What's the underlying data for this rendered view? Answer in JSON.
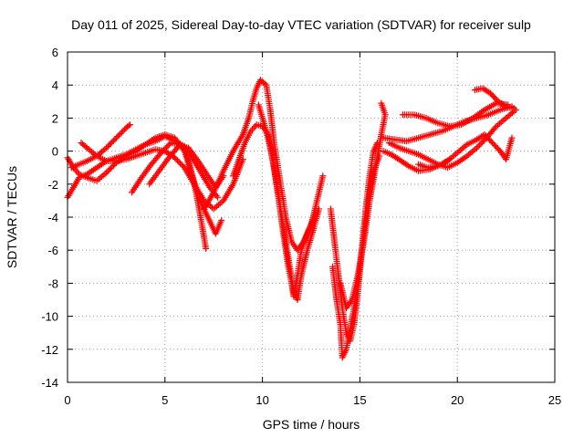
{
  "chart_data": {
    "type": "scatter",
    "title": "Day 011 of 2025, Sidereal Day-to-day VTEC variation (SDTVAR) for receiver sulp",
    "xlabel": "GPS time / hours",
    "ylabel": "SDTVAR / TECUs",
    "xlim": [
      0,
      25
    ],
    "ylim": [
      -14,
      6
    ],
    "xticks": [
      0,
      5,
      10,
      15,
      20,
      25
    ],
    "yticks": [
      -14,
      -12,
      -10,
      -8,
      -6,
      -4,
      -2,
      0,
      2,
      4,
      6
    ],
    "grid": true,
    "marker": "+",
    "color": "#ff0000",
    "series": [
      {
        "points": [
          [
            0.0,
            -2.8
          ],
          [
            0.3,
            -2.2
          ],
          [
            0.6,
            -1.6
          ],
          [
            1.0,
            -1.4
          ],
          [
            1.5,
            -1.0
          ],
          [
            2.0,
            -0.6
          ],
          [
            2.5,
            -0.4
          ],
          [
            3.0,
            -0.2
          ],
          [
            3.5,
            0.1
          ],
          [
            4.0,
            0.4
          ],
          [
            4.5,
            0.6
          ],
          [
            5.0,
            0.9
          ],
          [
            5.5,
            0.6
          ],
          [
            6.0,
            0.3
          ],
          [
            6.3,
            -1.0
          ],
          [
            6.6,
            -2.5
          ],
          [
            6.9,
            -4.5
          ],
          [
            7.1,
            -5.9
          ]
        ]
      },
      {
        "points": [
          [
            0.0,
            -0.4
          ],
          [
            0.3,
            -1.0
          ],
          [
            0.6,
            -1.4
          ],
          [
            1.0,
            -1.6
          ],
          [
            1.5,
            -1.8
          ],
          [
            2.0,
            -1.3
          ],
          [
            2.5,
            -0.7
          ],
          [
            3.0,
            -0.3
          ],
          [
            3.5,
            0.0
          ],
          [
            4.0,
            0.4
          ],
          [
            4.5,
            0.8
          ],
          [
            5.0,
            1.0
          ],
          [
            5.5,
            0.8
          ],
          [
            6.0,
            0.0
          ],
          [
            6.4,
            -1.5
          ],
          [
            6.8,
            -3.0
          ],
          [
            7.2,
            -4.0
          ],
          [
            7.6,
            -5.0
          ],
          [
            7.9,
            -4.2
          ]
        ]
      },
      {
        "points": [
          [
            0.7,
            0.5
          ],
          [
            1.0,
            0.2
          ],
          [
            1.5,
            -0.3
          ],
          [
            2.0,
            -0.6
          ],
          [
            2.5,
            -0.6
          ],
          [
            3.0,
            -0.5
          ],
          [
            3.5,
            -0.3
          ],
          [
            4.0,
            -0.1
          ],
          [
            4.5,
            0.1
          ],
          [
            5.0,
            0.0
          ],
          [
            5.5,
            -0.4
          ],
          [
            6.0,
            -1.0
          ],
          [
            6.5,
            -2.0
          ],
          [
            7.0,
            -3.0
          ],
          [
            7.5,
            -3.5
          ],
          [
            8.0,
            -3.0
          ],
          [
            8.5,
            -2.0
          ],
          [
            9.0,
            -0.5
          ]
        ]
      },
      {
        "points": [
          [
            0.2,
            -1.0
          ],
          [
            0.6,
            -0.8
          ],
          [
            1.0,
            -0.6
          ],
          [
            1.5,
            -0.3
          ],
          [
            2.0,
            0.2
          ],
          [
            2.5,
            0.8
          ],
          [
            3.0,
            1.4
          ],
          [
            3.2,
            1.6
          ]
        ]
      },
      {
        "points": [
          [
            3.3,
            -2.5
          ],
          [
            3.8,
            -1.6
          ],
          [
            4.3,
            -0.8
          ],
          [
            4.8,
            -0.1
          ],
          [
            5.3,
            0.5
          ],
          [
            5.8,
            0.4
          ],
          [
            6.3,
            -0.2
          ],
          [
            6.8,
            -1.2
          ],
          [
            7.3,
            -2.2
          ],
          [
            7.7,
            -2.8
          ]
        ]
      },
      {
        "points": [
          [
            4.2,
            -2.0
          ],
          [
            4.7,
            -1.2
          ],
          [
            5.2,
            -0.4
          ],
          [
            5.7,
            0.3
          ],
          [
            6.2,
            0.2
          ],
          [
            6.7,
            -0.6
          ],
          [
            7.2,
            -1.5
          ],
          [
            7.6,
            -2.2
          ],
          [
            8.0,
            -1.5
          ]
        ]
      },
      {
        "points": [
          [
            7.0,
            -3.5
          ],
          [
            7.5,
            -2.5
          ],
          [
            8.0,
            -1.2
          ],
          [
            8.5,
            0.0
          ],
          [
            9.0,
            1.0
          ],
          [
            9.3,
            2.0
          ],
          [
            9.5,
            3.0
          ],
          [
            9.7,
            3.8
          ],
          [
            9.9,
            4.3
          ],
          [
            10.2,
            4.0
          ],
          [
            10.4,
            2.5
          ],
          [
            10.6,
            0.5
          ],
          [
            10.8,
            -1.0
          ],
          [
            11.0,
            -2.5
          ],
          [
            11.2,
            -4.0
          ],
          [
            11.5,
            -5.5
          ],
          [
            11.8,
            -6.0
          ],
          [
            12.1,
            -5.5
          ],
          [
            12.5,
            -4.5
          ],
          [
            12.8,
            -3.0
          ],
          [
            13.1,
            -1.5
          ]
        ]
      },
      {
        "points": [
          [
            8.5,
            -1.5
          ],
          [
            8.8,
            -0.5
          ],
          [
            9.1,
            0.5
          ],
          [
            9.4,
            1.2
          ],
          [
            9.7,
            1.6
          ],
          [
            10.0,
            1.5
          ],
          [
            10.3,
            1.0
          ],
          [
            10.5,
            -0.3
          ],
          [
            10.7,
            -1.8
          ],
          [
            10.9,
            -3.5
          ],
          [
            11.1,
            -5.2
          ],
          [
            11.3,
            -6.8
          ],
          [
            11.5,
            -8.0
          ],
          [
            11.6,
            -8.8
          ],
          [
            11.8,
            -7.5
          ],
          [
            12.0,
            -6.0
          ],
          [
            12.3,
            -5.0
          ],
          [
            12.7,
            -3.8
          ]
        ]
      },
      {
        "points": [
          [
            9.8,
            2.8
          ],
          [
            10.0,
            2.0
          ],
          [
            10.2,
            1.2
          ],
          [
            10.4,
            0.2
          ],
          [
            10.6,
            -1.0
          ],
          [
            10.8,
            -2.5
          ],
          [
            11.0,
            -4.0
          ],
          [
            11.2,
            -5.5
          ],
          [
            11.4,
            -7.0
          ],
          [
            11.6,
            -8.5
          ],
          [
            11.8,
            -9.0
          ],
          [
            12.0,
            -7.5
          ],
          [
            12.3,
            -6.0
          ],
          [
            12.6,
            -4.8
          ],
          [
            12.9,
            -3.5
          ]
        ]
      },
      {
        "points": [
          [
            13.5,
            -3.5
          ],
          [
            13.7,
            -5.5
          ],
          [
            13.9,
            -7.5
          ],
          [
            14.1,
            -9.5
          ],
          [
            14.3,
            -11.0
          ],
          [
            14.5,
            -11.5
          ],
          [
            14.7,
            -10.5
          ],
          [
            14.9,
            -8.5
          ],
          [
            15.1,
            -6.0
          ],
          [
            15.3,
            -3.5
          ],
          [
            15.5,
            -1.5
          ],
          [
            15.7,
            0.0
          ],
          [
            15.9,
            0.5
          ]
        ]
      },
      {
        "points": [
          [
            13.6,
            -7.0
          ],
          [
            13.8,
            -9.0
          ],
          [
            14.0,
            -10.5
          ],
          [
            14.1,
            -12.5
          ],
          [
            14.3,
            -12.0
          ],
          [
            14.5,
            -10.8
          ],
          [
            14.7,
            -9.5
          ],
          [
            14.9,
            -8.0
          ],
          [
            15.1,
            -6.0
          ],
          [
            15.3,
            -4.0
          ],
          [
            15.5,
            -2.5
          ],
          [
            15.7,
            -1.2
          ],
          [
            16.0,
            -0.3
          ]
        ]
      },
      {
        "points": [
          [
            14.0,
            -8.0
          ],
          [
            14.3,
            -9.5
          ],
          [
            14.6,
            -9.0
          ],
          [
            14.9,
            -7.5
          ],
          [
            15.2,
            -5.5
          ],
          [
            15.5,
            -3.0
          ],
          [
            15.8,
            -1.0
          ],
          [
            16.1,
            1.0
          ],
          [
            16.3,
            2.2
          ],
          [
            16.1,
            2.9
          ]
        ]
      },
      {
        "points": [
          [
            16.2,
            0.8
          ],
          [
            16.8,
            0.7
          ],
          [
            17.4,
            0.6
          ],
          [
            18.0,
            0.8
          ],
          [
            18.6,
            1.0
          ],
          [
            19.2,
            1.2
          ],
          [
            19.8,
            1.5
          ],
          [
            20.4,
            1.8
          ],
          [
            21.0,
            2.0
          ],
          [
            21.6,
            2.2
          ],
          [
            22.2,
            2.5
          ],
          [
            22.8,
            2.7
          ]
        ]
      },
      {
        "points": [
          [
            16.5,
            0.5
          ],
          [
            17.0,
            0.2
          ],
          [
            17.5,
            0.0
          ],
          [
            18.0,
            -0.2
          ],
          [
            18.5,
            -0.5
          ],
          [
            19.0,
            -0.8
          ],
          [
            19.5,
            -1.0
          ],
          [
            20.0,
            -0.7
          ],
          [
            20.5,
            -0.3
          ],
          [
            21.0,
            0.2
          ],
          [
            21.5,
            0.8
          ],
          [
            22.0,
            1.5
          ],
          [
            22.5,
            2.0
          ],
          [
            22.9,
            2.4
          ]
        ]
      },
      {
        "points": [
          [
            17.2,
            2.2
          ],
          [
            17.8,
            2.2
          ],
          [
            18.4,
            2.0
          ],
          [
            19.0,
            1.7
          ],
          [
            19.6,
            1.5
          ],
          [
            20.2,
            1.6
          ],
          [
            20.8,
            2.0
          ],
          [
            21.4,
            2.5
          ],
          [
            22.0,
            2.9
          ],
          [
            22.6,
            2.8
          ]
        ]
      },
      {
        "points": [
          [
            18.0,
            -0.8
          ],
          [
            18.5,
            -1.0
          ],
          [
            19.0,
            -0.9
          ],
          [
            19.5,
            -0.6
          ],
          [
            20.0,
            -0.1
          ],
          [
            20.5,
            0.4
          ],
          [
            21.0,
            0.7
          ],
          [
            21.4,
            1.0
          ],
          [
            21.8,
            0.5
          ],
          [
            22.2,
            0.0
          ],
          [
            22.5,
            -0.5
          ],
          [
            22.8,
            0.8
          ]
        ]
      },
      {
        "points": [
          [
            20.9,
            3.7
          ],
          [
            21.3,
            3.8
          ],
          [
            21.7,
            3.5
          ],
          [
            22.1,
            3.0
          ],
          [
            22.5,
            2.7
          ],
          [
            22.9,
            2.6
          ],
          [
            23.0,
            2.5
          ]
        ]
      },
      {
        "points": [
          [
            16.2,
            0.0
          ],
          [
            16.6,
            -0.2
          ],
          [
            17.0,
            -0.5
          ],
          [
            17.5,
            -0.9
          ],
          [
            18.0,
            -1.2
          ],
          [
            18.6,
            -1.1
          ],
          [
            19.2,
            -0.8
          ],
          [
            19.6,
            -0.5
          ]
        ]
      }
    ]
  }
}
